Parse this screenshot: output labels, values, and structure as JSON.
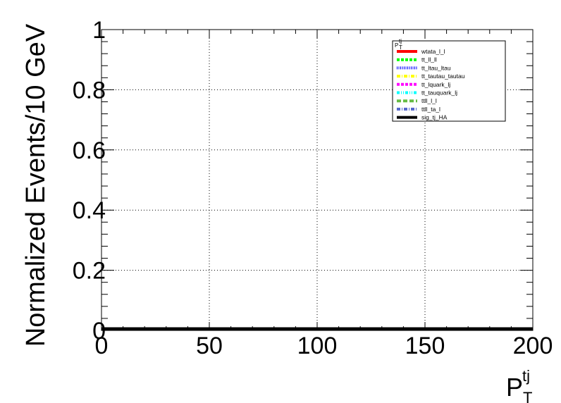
{
  "chart_data": {
    "type": "line",
    "xlabel": {
      "base": "P",
      "sub": "T",
      "sup": "tj"
    },
    "ylabel": "Normalized Events/10 GeV",
    "xlim": [
      0,
      200
    ],
    "ylim": [
      0,
      1
    ],
    "x_ticks": [
      0,
      50,
      100,
      150,
      200
    ],
    "x_tick_labels": [
      "0",
      "50",
      "100",
      "150",
      "200"
    ],
    "y_ticks": [
      0,
      0.2,
      0.4,
      0.6,
      0.8,
      1
    ],
    "y_tick_labels": [
      "0",
      "0.2",
      "0.4",
      "0.6",
      "0.8",
      "1"
    ],
    "grid": true,
    "legend": {
      "placement": "top-right",
      "title": {
        "base": "P",
        "sub": "T",
        "sup": "tj"
      },
      "entries": [
        {
          "name": "wtata_l_l",
          "color": "#ff0000",
          "style": "solid"
        },
        {
          "name": "tt_ll_ll",
          "color": "#00ff00",
          "style": "dashed"
        },
        {
          "name": "tt_ltau_ltau",
          "color": "#0000ff",
          "style": "dotted"
        },
        {
          "name": "tt_tautau_tautau",
          "color": "#ffff00",
          "style": "dashdot"
        },
        {
          "name": "tt_lquark_lj",
          "color": "#ff00ff",
          "style": "dashed"
        },
        {
          "name": "tt_tauquark_lj",
          "color": "#00ffff",
          "style": "dashdotdot"
        },
        {
          "name": "ttll_l_l",
          "color": "#66bb44",
          "style": "longdash"
        },
        {
          "name": "ttll_ta_l",
          "color": "#5566cc",
          "style": "dashdot"
        },
        {
          "name": "sig_tj_HA",
          "color": "#000000",
          "style": "solid"
        }
      ]
    },
    "series": [
      {
        "name": "wtata_l_l",
        "x": [
          0,
          200
        ],
        "y": [
          0,
          0
        ]
      },
      {
        "name": "tt_ll_ll",
        "x": [
          0,
          200
        ],
        "y": [
          0,
          0
        ]
      },
      {
        "name": "tt_ltau_ltau",
        "x": [
          0,
          200
        ],
        "y": [
          0,
          0
        ]
      },
      {
        "name": "tt_tautau_tautau",
        "x": [
          0,
          200
        ],
        "y": [
          0,
          0
        ]
      },
      {
        "name": "tt_lquark_lj",
        "x": [
          0,
          200
        ],
        "y": [
          0,
          0
        ]
      },
      {
        "name": "tt_tauquark_lj",
        "x": [
          0,
          200
        ],
        "y": [
          0,
          0
        ]
      },
      {
        "name": "ttll_l_l",
        "x": [
          0,
          200
        ],
        "y": [
          0,
          0
        ]
      },
      {
        "name": "ttll_ta_l",
        "x": [
          0,
          200
        ],
        "y": [
          0,
          0
        ]
      },
      {
        "name": "sig_tj_HA",
        "x": [
          0,
          200
        ],
        "y": [
          0,
          0
        ]
      }
    ]
  }
}
